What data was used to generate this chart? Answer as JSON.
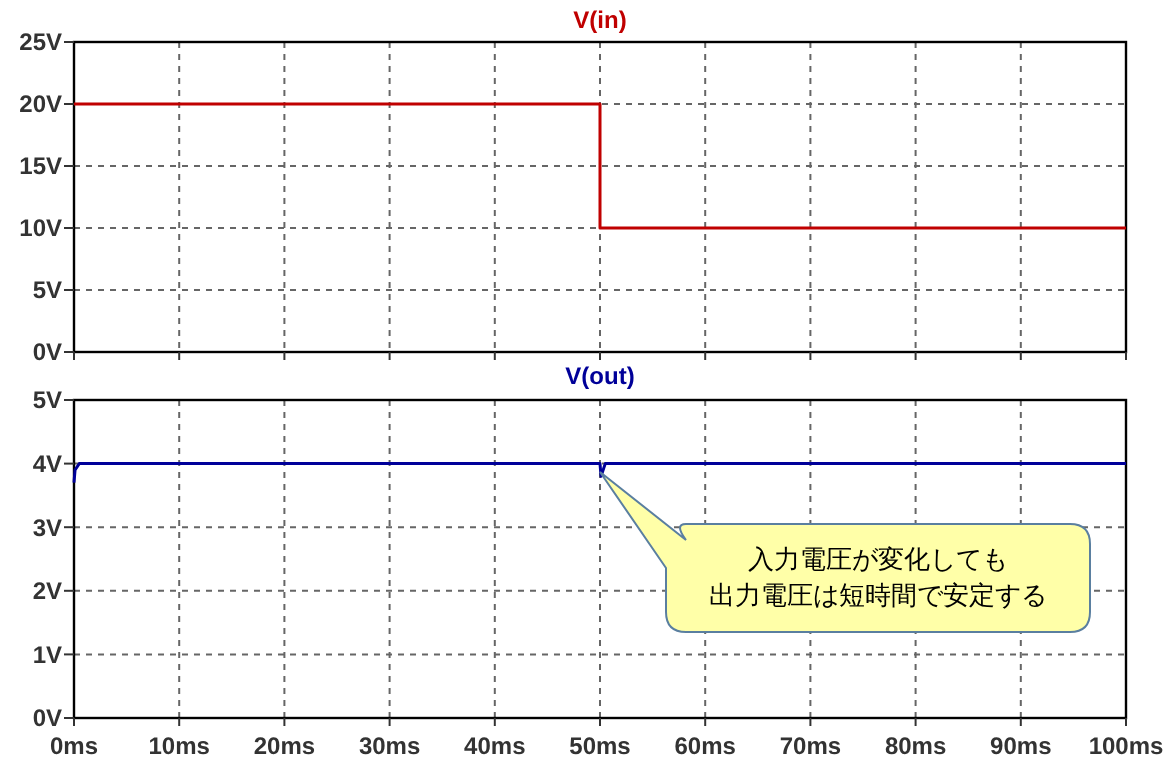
{
  "chart_data": [
    {
      "type": "line",
      "title": "V(in)",
      "x": [
        0,
        50,
        50,
        100
      ],
      "xlim": [
        0,
        100
      ],
      "xticks": [
        {
          "value": 0,
          "label": null
        },
        {
          "value": 10,
          "label": null
        },
        {
          "value": 20,
          "label": null
        },
        {
          "value": 30,
          "label": null
        },
        {
          "value": 40,
          "label": null
        },
        {
          "value": 50,
          "label": null
        },
        {
          "value": 60,
          "label": null
        },
        {
          "value": 70,
          "label": null
        },
        {
          "value": 80,
          "label": null
        },
        {
          "value": 90,
          "label": null
        },
        {
          "value": 100,
          "label": null
        }
      ],
      "ylim": [
        0,
        25
      ],
      "yticks": [
        {
          "value": 0,
          "label": "0V"
        },
        {
          "value": 5,
          "label": "5V"
        },
        {
          "value": 10,
          "label": "10V"
        },
        {
          "value": 15,
          "label": "15V"
        },
        {
          "value": 20,
          "label": "20V"
        },
        {
          "value": 25,
          "label": "25V"
        }
      ],
      "tick_labels": "y",
      "grid": true,
      "series": [
        {
          "color": "#c00000",
          "values": [
            20,
            20,
            10,
            10
          ]
        }
      ]
    },
    {
      "type": "line",
      "title": "V(out)",
      "x": [
        0,
        0.1,
        0.5,
        1,
        50,
        50.1,
        50.5,
        51,
        100
      ],
      "xlim": [
        0,
        100
      ],
      "xticks": [
        {
          "value": 0,
          "label": "0ms"
        },
        {
          "value": 10,
          "label": "10ms"
        },
        {
          "value": 20,
          "label": "20ms"
        },
        {
          "value": 30,
          "label": "30ms"
        },
        {
          "value": 40,
          "label": "40ms"
        },
        {
          "value": 50,
          "label": "50ms"
        },
        {
          "value": 60,
          "label": "60ms"
        },
        {
          "value": 70,
          "label": "70ms"
        },
        {
          "value": 80,
          "label": "80ms"
        },
        {
          "value": 90,
          "label": "90ms"
        },
        {
          "value": 100,
          "label": "100ms"
        }
      ],
      "ylim": [
        0,
        5
      ],
      "yticks": [
        {
          "value": 0,
          "label": "0V"
        },
        {
          "value": 1,
          "label": "1V"
        },
        {
          "value": 2,
          "label": "2V"
        },
        {
          "value": 3,
          "label": "3V"
        },
        {
          "value": 4,
          "label": "4V"
        },
        {
          "value": 5,
          "label": "5V"
        }
      ],
      "grid": true,
      "series": [
        {
          "color": "#000099",
          "values": [
            3.7,
            3.9,
            4,
            4,
            4,
            3.8,
            4,
            4,
            4
          ]
        }
      ],
      "annotations": [
        "入力電圧が変化しても",
        "出力電圧は短時間で安定する"
      ]
    }
  ]
}
